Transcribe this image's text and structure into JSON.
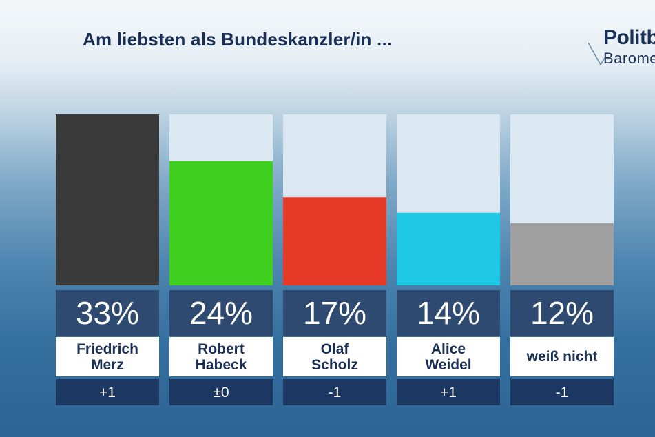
{
  "title": "Am liebsten als Bundeskanzler/in ...",
  "logo": {
    "line1": "Politb",
    "line2": "Barometer"
  },
  "colors": {
    "track": "#dbe8f1"
  },
  "chart_data": {
    "type": "bar",
    "title": "Am liebsten als Bundeskanzler/in ...",
    "unit": "%",
    "ylim": [
      0,
      33
    ],
    "categories": [
      "Friedrich\nMerz",
      "Robert\nHabeck",
      "Olaf\nScholz",
      "Alice\nWeidel",
      "weiß nicht"
    ],
    "values": [
      33,
      24,
      17,
      14,
      12
    ],
    "value_labels": [
      "33%",
      "24%",
      "17%",
      "14%",
      "12%"
    ],
    "changes": [
      "+1",
      "±0",
      "-1",
      "+1",
      "-1"
    ],
    "colors": [
      "#3a3a3a",
      "#3ecf1f",
      "#e63a26",
      "#1fc9e6",
      "#a0a0a0"
    ]
  }
}
